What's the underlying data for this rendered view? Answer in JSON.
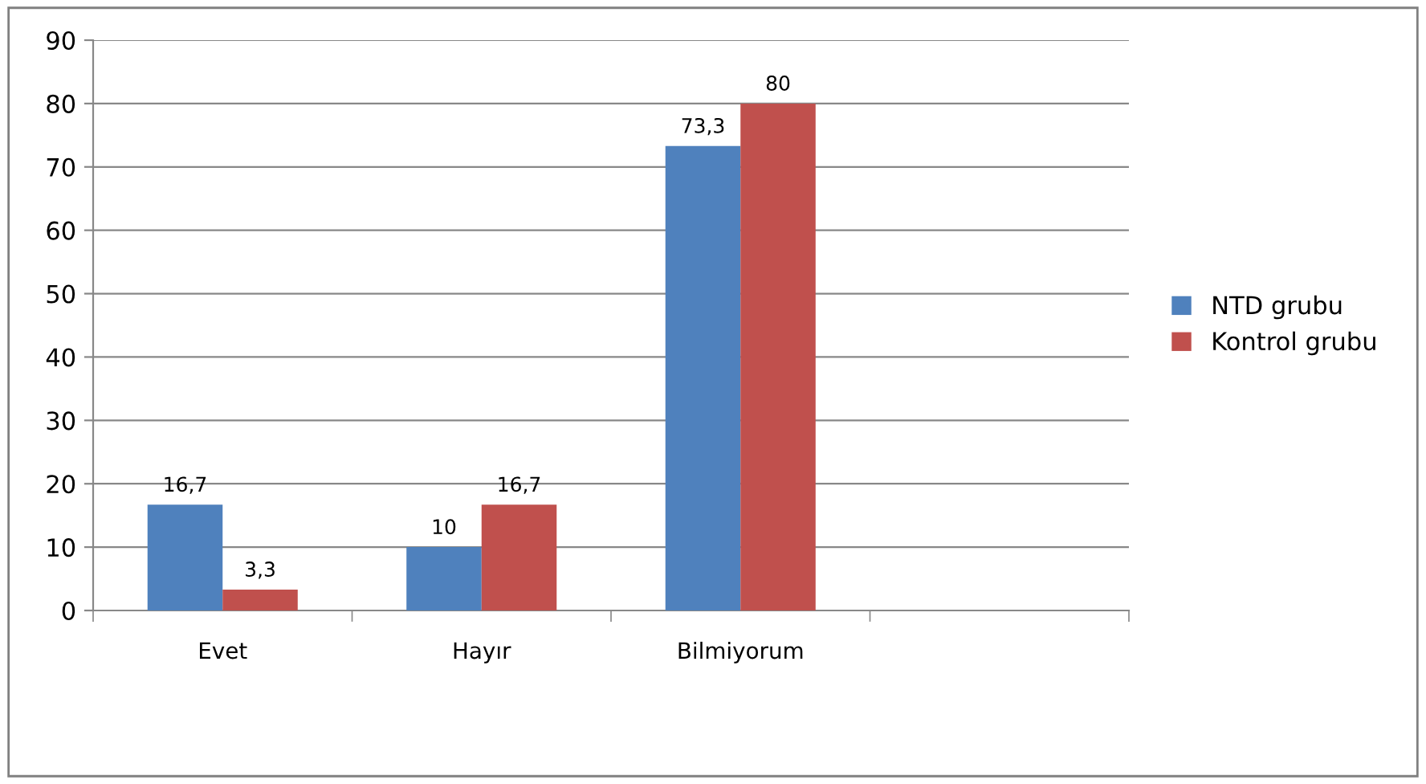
{
  "chart_data": {
    "type": "bar",
    "categories": [
      "Evet",
      "Hayır",
      "Bilmiyorum",
      null
    ],
    "series": [
      {
        "name": "NTD grubu",
        "color": "#4f81bd",
        "values": [
          16.7,
          10,
          73.3,
          null
        ],
        "value_labels": [
          "16,7",
          "10",
          "73,3",
          null
        ]
      },
      {
        "name": "Kontrol grubu",
        "color": "#c0504d",
        "values": [
          3.3,
          16.7,
          80,
          null
        ],
        "value_labels": [
          "3,3",
          "16,7",
          "80",
          null
        ]
      }
    ],
    "ylim": [
      0,
      90
    ],
    "yticks": [
      0,
      10,
      20,
      30,
      40,
      50,
      60,
      70,
      80,
      90
    ],
    "grid": "y",
    "legend": "right"
  }
}
